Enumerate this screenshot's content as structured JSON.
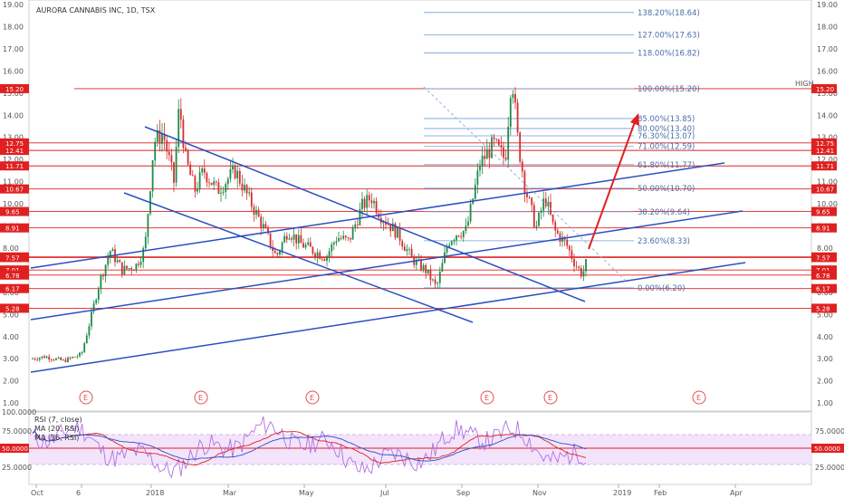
{
  "chart_title": "AURORA CANNABIS INC, 1D, TSX",
  "price_axis": [
    "19.00",
    "18.00",
    "17.00",
    "16.00",
    "15.00",
    "14.00",
    "13.00",
    "12.00",
    "11.00",
    "10.00",
    "9.00",
    "8.00",
    "7.00",
    "6.00",
    "5.00",
    "4.00",
    "3.00",
    "2.00",
    "1.00"
  ],
  "time_axis": [
    "Oct",
    "6",
    "2018",
    "Mar",
    "May",
    "Jul",
    "Sep",
    "Nov",
    "2019",
    "Feb",
    "Apr"
  ],
  "fib_levels": [
    "138.20%(18.64)",
    "127.00%(17.63)",
    "118.00%(16.82)",
    "100.00%(15.20)",
    "85.00%(13.85)",
    "80.00%(13.40)",
    "76.30%(13.07)",
    "71.00%(12.59)",
    "61.80%(11.77)",
    "50.00%(10.70)",
    "38.20%(9.64)",
    "23.60%(8.33)",
    "0.00%(6.20)"
  ],
  "high_label": "HIGH",
  "level_tags": [
    "15.20",
    "12.75",
    "12.41",
    "11.71",
    "10.67",
    "9.65",
    "8.91",
    "7.60",
    "7.57",
    "7.01",
    "6.78",
    "6.17",
    "5.28"
  ],
  "event_marker": "E",
  "rsi": {
    "title": "RSI (7, close)",
    "ma20_label": "MA (20, RSI)",
    "ma36_label": "MA (36, RSI)",
    "axis": [
      "100.0000",
      "75.0000",
      "25.0000"
    ],
    "midline_tag": "50.0000"
  },
  "colors": {
    "trendline": "#2a4fc0",
    "level": "#e02020",
    "fib": "#6fa0d8",
    "candle_up": "#1e8a4a",
    "candle_down": "#d23030",
    "rsi": "#b070e0",
    "rsi_band": "#f3e4fb"
  }
}
